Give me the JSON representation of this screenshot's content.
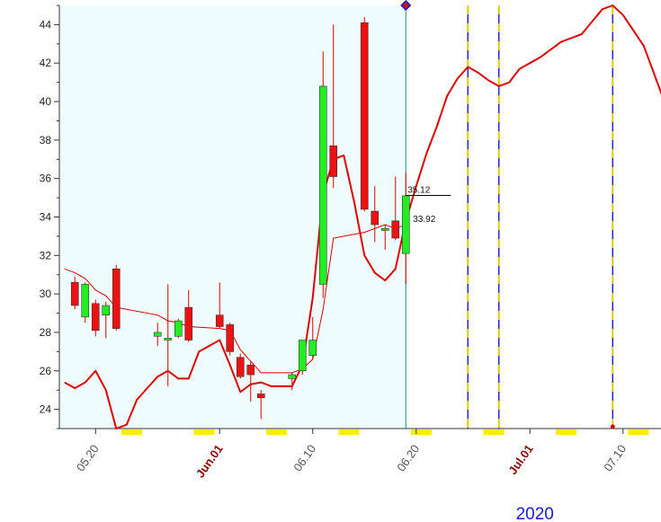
{
  "chart_data": {
    "type": "candlestick",
    "y_axis": {
      "range": [
        23,
        45
      ],
      "ticks": [
        24,
        26,
        28,
        30,
        32,
        34,
        36,
        38,
        40,
        42,
        44
      ],
      "position": "left"
    },
    "x_axis": {
      "date_range": [
        "2020-05-17",
        "2020-07-14"
      ],
      "ticks": [
        {
          "date": "2020-05-20",
          "label": "05.20",
          "month_start": false
        },
        {
          "date": "2020-06-01",
          "label": "Jun.01",
          "month_start": true
        },
        {
          "date": "2020-06-10",
          "label": "06.10",
          "month_start": false
        },
        {
          "date": "2020-06-20",
          "label": "06.20",
          "month_start": false
        },
        {
          "date": "2020-07-01",
          "label": "Jul.01",
          "month_start": true
        },
        {
          "date": "2020-07-10",
          "label": "07.10",
          "month_start": false
        }
      ],
      "year_label": "2020"
    },
    "history_end_date": "2020-06-19",
    "candles": [
      {
        "date": "2020-05-18",
        "open": 30.6,
        "high": 30.9,
        "low": 29.2,
        "close": 29.4
      },
      {
        "date": "2020-05-19",
        "open": 28.8,
        "high": 30.6,
        "low": 28.5,
        "close": 30.5
      },
      {
        "date": "2020-05-20",
        "open": 29.5,
        "high": 29.7,
        "low": 27.8,
        "close": 28.1
      },
      {
        "date": "2020-05-21",
        "open": 28.9,
        "high": 29.6,
        "low": 27.7,
        "close": 29.4
      },
      {
        "date": "2020-05-22",
        "open": 31.3,
        "high": 31.5,
        "low": 28.1,
        "close": 28.2
      },
      {
        "date": "2020-05-26",
        "open": 27.8,
        "high": 28.5,
        "low": 27.3,
        "close": 28.0
      },
      {
        "date": "2020-05-27",
        "open": 27.6,
        "high": 30.5,
        "low": 25.2,
        "close": 27.7
      },
      {
        "date": "2020-05-28",
        "open": 27.8,
        "high": 28.7,
        "low": 27.7,
        "close": 28.6
      },
      {
        "date": "2020-05-29",
        "open": 29.3,
        "high": 30.2,
        "low": 27.5,
        "close": 27.6
      },
      {
        "date": "2020-06-01",
        "open": 28.9,
        "high": 30.6,
        "low": 28.2,
        "close": 28.3
      },
      {
        "date": "2020-06-02",
        "open": 28.4,
        "high": 28.5,
        "low": 26.8,
        "close": 27.0
      },
      {
        "date": "2020-06-03",
        "open": 26.7,
        "high": 26.9,
        "low": 25.6,
        "close": 25.7
      },
      {
        "date": "2020-06-04",
        "open": 26.3,
        "high": 26.5,
        "low": 24.4,
        "close": 25.8
      },
      {
        "date": "2020-06-05",
        "open": 24.8,
        "high": 25.0,
        "low": 23.5,
        "close": 24.6
      },
      {
        "date": "2020-06-08",
        "open": 25.6,
        "high": 25.9,
        "low": 25.0,
        "close": 25.8
      },
      {
        "date": "2020-06-09",
        "open": 26.0,
        "high": 27.6,
        "low": 25.8,
        "close": 27.6
      },
      {
        "date": "2020-06-10",
        "open": 26.8,
        "high": 28.8,
        "low": 26.6,
        "close": 27.6
      },
      {
        "date": "2020-06-11",
        "open": 30.5,
        "high": 42.6,
        "low": 29.8,
        "close": 40.8
      },
      {
        "date": "2020-06-12",
        "open": 37.7,
        "high": 44.0,
        "low": 35.5,
        "close": 36.1
      },
      {
        "date": "2020-06-15",
        "open": 44.1,
        "high": 44.4,
        "low": 34.3,
        "close": 34.4
      },
      {
        "date": "2020-06-16",
        "open": 34.3,
        "high": 35.6,
        "low": 32.7,
        "close": 33.6
      },
      {
        "date": "2020-06-17",
        "open": 33.3,
        "high": 33.6,
        "low": 32.3,
        "close": 33.4
      },
      {
        "date": "2020-06-18",
        "open": 33.8,
        "high": 36.1,
        "low": 32.8,
        "close": 32.9
      },
      {
        "date": "2020-06-19",
        "open": 32.1,
        "high": 36.3,
        "low": 30.5,
        "close": 35.1
      }
    ],
    "moving_average": [
      [
        "2020-05-17",
        31.3
      ],
      [
        "2020-05-18",
        31.1
      ],
      [
        "2020-05-19",
        30.8
      ],
      [
        "2020-05-20",
        30.2
      ],
      [
        "2020-05-21",
        29.9
      ],
      [
        "2020-05-22",
        29.3
      ],
      [
        "2020-05-26",
        28.9
      ],
      [
        "2020-05-27",
        28.6
      ],
      [
        "2020-05-28",
        28.5
      ],
      [
        "2020-05-29",
        28.3
      ],
      [
        "2020-06-01",
        28.2
      ],
      [
        "2020-06-02",
        28.1
      ],
      [
        "2020-06-03",
        27.1
      ],
      [
        "2020-06-04",
        26.5
      ],
      [
        "2020-06-05",
        25.9
      ],
      [
        "2020-06-08",
        25.9
      ],
      [
        "2020-06-09",
        26.1
      ],
      [
        "2020-06-10",
        26.6
      ],
      [
        "2020-06-11",
        29.2
      ],
      [
        "2020-06-12",
        32.9
      ],
      [
        "2020-06-15",
        33.2
      ],
      [
        "2020-06-16",
        33.4
      ],
      [
        "2020-06-17",
        33.6
      ],
      [
        "2020-06-18",
        33.4
      ],
      [
        "2020-06-19",
        33.6
      ]
    ],
    "projection_line": [
      [
        "2020-05-17",
        25.4
      ],
      [
        "2020-05-18",
        25.1
      ],
      [
        "2020-05-19",
        25.4
      ],
      [
        "2020-05-20",
        26.0
      ],
      [
        "2020-05-21",
        25.0
      ],
      [
        "2020-05-22",
        23.0
      ],
      [
        "2020-05-23",
        23.2
      ],
      [
        "2020-05-24",
        24.5
      ],
      [
        "2020-05-26",
        25.7
      ],
      [
        "2020-05-27",
        26.0
      ],
      [
        "2020-05-28",
        25.6
      ],
      [
        "2020-05-29",
        25.6
      ],
      [
        "2020-05-30",
        27.0
      ],
      [
        "2020-06-01",
        27.6
      ],
      [
        "2020-06-02",
        26.3
      ],
      [
        "2020-06-03",
        24.9
      ],
      [
        "2020-06-04",
        25.3
      ],
      [
        "2020-06-05",
        25.4
      ],
      [
        "2020-06-06",
        25.2
      ],
      [
        "2020-06-08",
        25.2
      ],
      [
        "2020-06-09",
        26.3
      ],
      [
        "2020-06-10",
        29.8
      ],
      [
        "2020-06-11",
        35.2
      ],
      [
        "2020-06-12",
        37.0
      ],
      [
        "2020-06-13",
        37.2
      ],
      [
        "2020-06-14",
        34.8
      ],
      [
        "2020-06-15",
        32.0
      ],
      [
        "2020-06-16",
        31.1
      ],
      [
        "2020-06-17",
        30.7
      ],
      [
        "2020-06-18",
        31.3
      ],
      [
        "2020-06-19",
        33.8
      ],
      [
        "2020-06-20",
        35.6
      ],
      [
        "2020-06-21",
        37.3
      ],
      [
        "2020-06-22",
        38.7
      ],
      [
        "2020-06-23",
        40.3
      ],
      [
        "2020-06-24",
        41.2
      ],
      [
        "2020-06-25",
        41.8
      ],
      [
        "2020-06-26",
        41.5
      ],
      [
        "2020-06-27",
        41.1
      ],
      [
        "2020-06-28",
        40.8
      ],
      [
        "2020-06-29",
        41.0
      ],
      [
        "2020-06-30",
        41.7
      ],
      [
        "2020-07-02",
        42.3
      ],
      [
        "2020-07-04",
        43.1
      ],
      [
        "2020-07-06",
        43.5
      ],
      [
        "2020-07-08",
        44.8
      ],
      [
        "2020-07-09",
        45.0
      ],
      [
        "2020-07-10",
        44.5
      ],
      [
        "2020-07-12",
        42.9
      ],
      [
        "2020-07-14",
        40.0
      ]
    ],
    "annotations": [
      {
        "text": "35.12",
        "value": 35.12,
        "date": "2020-06-19"
      },
      {
        "text": "33.92",
        "value": 33.92,
        "date": "2020-06-19"
      }
    ],
    "vertical_markers": [
      {
        "date": "2020-06-25",
        "color": "#1a1acc"
      },
      {
        "date": "2020-06-28",
        "color": "#1a1acc"
      },
      {
        "date": "2020-07-09",
        "color": "#1a1acc"
      }
    ],
    "point_markers": [
      {
        "date": "2020-06-19",
        "value": 45,
        "shape": "diamond"
      },
      {
        "date": "2020-07-09",
        "value": 23.1,
        "shape": "dot"
      }
    ],
    "weekend_marks": [
      [
        "2020-05-23",
        "2020-05-24"
      ],
      [
        "2020-05-30",
        "2020-05-31"
      ],
      [
        "2020-06-06",
        "2020-06-07"
      ],
      [
        "2020-06-13",
        "2020-06-14"
      ],
      [
        "2020-06-20",
        "2020-06-21"
      ],
      [
        "2020-06-27",
        "2020-06-28"
      ],
      [
        "2020-07-04",
        "2020-07-05"
      ],
      [
        "2020-07-11",
        "2020-07-12"
      ]
    ],
    "colors": {
      "up_candle": "#22ee22",
      "down_candle": "#ee1111",
      "history_background": "#eefcfd",
      "line": "#dd0000",
      "weekend_mark": "#ffee00",
      "history_border": "#1a8a8a",
      "axis": "#333333"
    },
    "grid": false
  }
}
